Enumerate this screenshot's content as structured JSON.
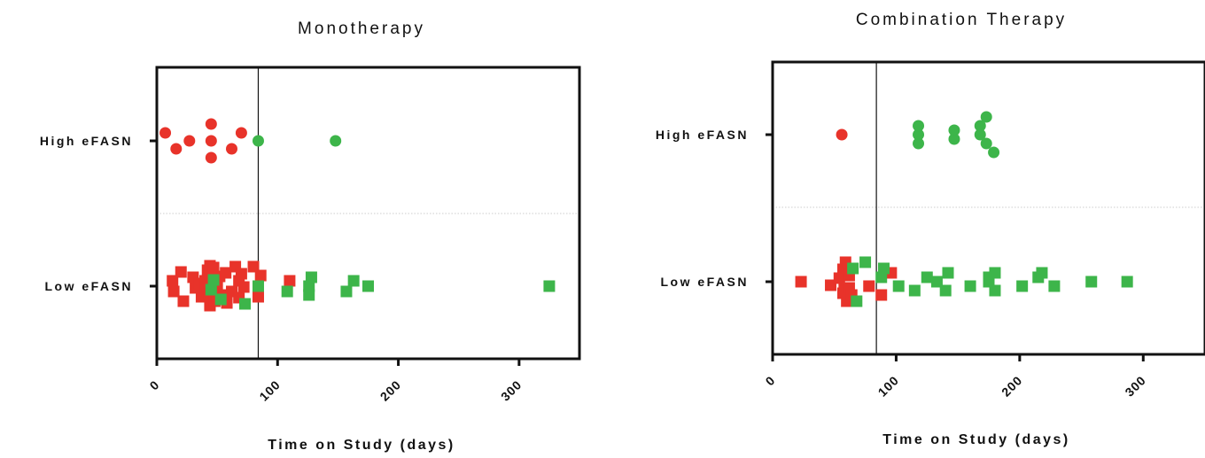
{
  "colors": {
    "red": "#e8332a",
    "green": "#3db54a",
    "frame": "#111111",
    "sep": "#cccccc"
  },
  "chart_data": [
    {
      "type": "scatter",
      "title": "Monotherapy",
      "xlabel": "Time on Study (days)",
      "ylabel": "",
      "categories": [
        "High eFASN",
        "Low eFASN"
      ],
      "xlim": [
        0,
        350
      ],
      "xticks": [
        "0",
        "100",
        "200",
        "300"
      ],
      "xtick_values": [
        0,
        100,
        200,
        300
      ],
      "reference_line_x": 84,
      "series": [
        {
          "group": "High eFASN",
          "marker": "circle",
          "color": "red",
          "points": [
            [
              7,
              -0.45
            ],
            [
              16,
              0.45
            ],
            [
              27,
              0
            ],
            [
              45,
              0.95
            ],
            [
              45,
              0
            ],
            [
              45,
              -0.95
            ],
            [
              62,
              0.45
            ],
            [
              70,
              -0.45
            ]
          ]
        },
        {
          "group": "High eFASN",
          "marker": "circle",
          "color": "green",
          "points": [
            [
              84,
              0
            ],
            [
              148,
              0
            ]
          ]
        },
        {
          "group": "Low eFASN",
          "marker": "square",
          "color": "red",
          "points": [
            [
              14,
              0.3
            ],
            [
              13,
              -0.3
            ],
            [
              20,
              -0.8
            ],
            [
              22,
              0.85
            ],
            [
              32,
              0.1
            ],
            [
              30,
              -0.5
            ],
            [
              35,
              -0.15
            ],
            [
              37,
              0.6
            ],
            [
              40,
              0.2
            ],
            [
              40,
              -0.3
            ],
            [
              42,
              -0.9
            ],
            [
              43,
              0.55
            ],
            [
              44,
              1.0
            ],
            [
              44,
              -0.6
            ],
            [
              44,
              -1.15
            ],
            [
              44,
              1.1
            ],
            [
              45,
              0.35
            ],
            [
              47,
              -1.05
            ],
            [
              48,
              -0.25
            ],
            [
              48,
              0.85
            ],
            [
              50,
              0.05
            ],
            [
              52,
              -0.55
            ],
            [
              53,
              0.5
            ],
            [
              57,
              -0.75
            ],
            [
              58,
              0.95
            ],
            [
              62,
              0.3
            ],
            [
              65,
              -1.1
            ],
            [
              68,
              0.65
            ],
            [
              68,
              -0.3
            ],
            [
              70,
              -0.7
            ],
            [
              72,
              0.05
            ],
            [
              80,
              -1.1
            ],
            [
              84,
              0.6
            ],
            [
              86,
              -0.6
            ],
            [
              110,
              -0.3
            ]
          ]
        },
        {
          "group": "Low eFASN",
          "marker": "square",
          "color": "green",
          "points": [
            [
              45,
              0.2
            ],
            [
              47,
              -0.35
            ],
            [
              53,
              0.75
            ],
            [
              73,
              1.0
            ],
            [
              84,
              0
            ],
            [
              108,
              0.3
            ],
            [
              126,
              0
            ],
            [
              126,
              0.5
            ],
            [
              128,
              -0.5
            ],
            [
              157,
              0.3
            ],
            [
              163,
              -0.3
            ],
            [
              175,
              0
            ],
            [
              325,
              0
            ]
          ]
        }
      ]
    },
    {
      "type": "scatter",
      "title": "Combination Therapy",
      "xlabel": "Time on Study (days)",
      "ylabel": "",
      "categories": [
        "High eFASN",
        "Low eFASN"
      ],
      "xlim": [
        0,
        350
      ],
      "xticks": [
        "0",
        "100",
        "200",
        "300"
      ],
      "xtick_values": [
        0,
        100,
        200,
        300
      ],
      "reference_line_x": 84,
      "series": [
        {
          "group": "High eFASN",
          "marker": "circle",
          "color": "red",
          "points": [
            [
              56,
              0
            ]
          ]
        },
        {
          "group": "High eFASN",
          "marker": "circle",
          "color": "green",
          "points": [
            [
              118,
              0.5
            ],
            [
              118,
              0
            ],
            [
              118,
              -0.5
            ],
            [
              147,
              0.25
            ],
            [
              147,
              -0.25
            ],
            [
              168,
              0
            ],
            [
              168,
              -0.5
            ],
            [
              173,
              0.5
            ],
            [
              173,
              -1.0
            ],
            [
              179,
              1.0
            ]
          ]
        },
        {
          "group": "Low eFASN",
          "marker": "square",
          "color": "red",
          "points": [
            [
              23,
              0
            ],
            [
              47,
              0.2
            ],
            [
              54,
              -0.2
            ],
            [
              57,
              0.65
            ],
            [
              57,
              -0.7
            ],
            [
              58,
              0.45
            ],
            [
              59,
              -1.1
            ],
            [
              60,
              1.1
            ],
            [
              62,
              0.35
            ],
            [
              62,
              -0.35
            ],
            [
              64,
              0.75
            ],
            [
              78,
              0.25
            ],
            [
              88,
              0.75
            ],
            [
              96,
              -0.5
            ]
          ]
        },
        {
          "group": "Low eFASN",
          "marker": "square",
          "color": "green",
          "points": [
            [
              68,
              1.1
            ],
            [
              65,
              -0.75
            ],
            [
              75,
              -1.1
            ],
            [
              88,
              -0.25
            ],
            [
              90,
              -0.75
            ],
            [
              102,
              0.25
            ],
            [
              115,
              0.5
            ],
            [
              125,
              -0.25
            ],
            [
              133,
              0
            ],
            [
              140,
              0.5
            ],
            [
              142,
              -0.5
            ],
            [
              160,
              0.25
            ],
            [
              175,
              0
            ],
            [
              175,
              -0.25
            ],
            [
              180,
              -0.5
            ],
            [
              180,
              0.5
            ],
            [
              202,
              0.25
            ],
            [
              215,
              -0.25
            ],
            [
              218,
              -0.5
            ],
            [
              228,
              0.25
            ],
            [
              258,
              0
            ],
            [
              287,
              0
            ]
          ]
        }
      ]
    }
  ]
}
